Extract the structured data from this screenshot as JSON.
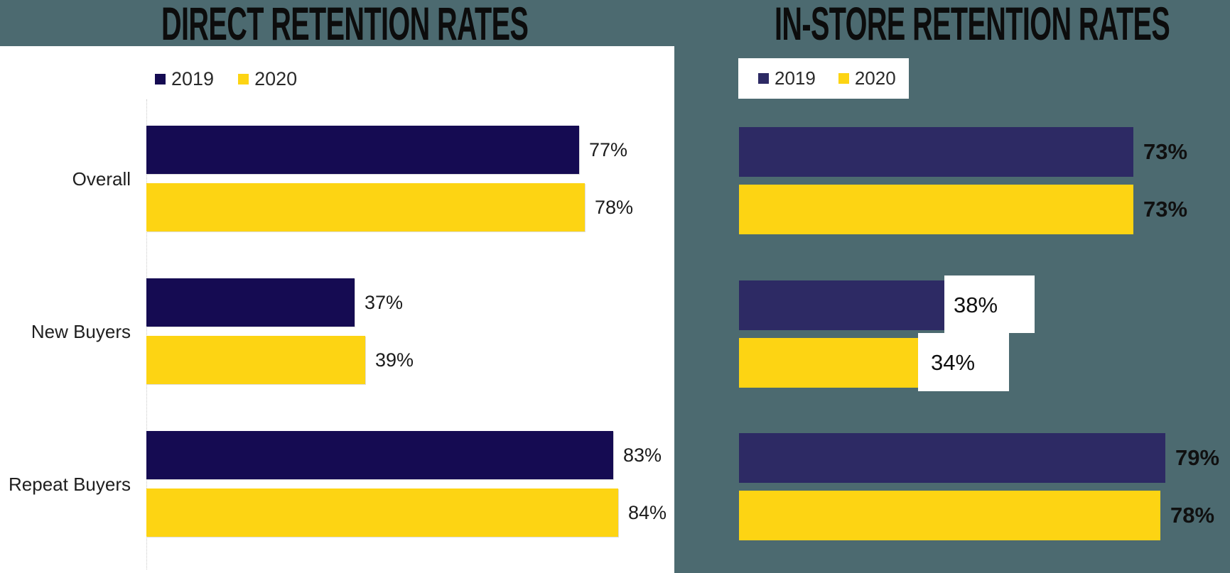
{
  "page": {
    "background_color": "#4C6A70"
  },
  "chart_data": [
    {
      "type": "bar",
      "orientation": "horizontal",
      "title": "DIRECT RETENTION RATES",
      "panel_background": "#FFFFFF",
      "categories": [
        "Overall",
        "New Buyers",
        "Repeat Buyers"
      ],
      "series": [
        {
          "name": "2019",
          "color": "#150B52",
          "values": [
            77,
            37,
            83
          ]
        },
        {
          "name": "2020",
          "color": "#FDD413",
          "values": [
            78,
            39,
            84
          ]
        }
      ],
      "value_suffix": "%",
      "data_labels": true,
      "legend_position": "top-left",
      "legend_entries": [
        "2019",
        "2020"
      ],
      "axis": {
        "baseline_visible": true,
        "tick_labels_visible": false
      },
      "xlim": [
        0,
        100
      ]
    },
    {
      "type": "bar",
      "orientation": "horizontal",
      "title": "IN-STORE RETENTION RATES",
      "panel_background": "#4C6A70",
      "categories": [
        "",
        "",
        ""
      ],
      "series": [
        {
          "name": "2019",
          "color": "#2D2A64",
          "values": [
            73,
            38,
            79
          ]
        },
        {
          "name": "2020",
          "color": "#FDD413",
          "values": [
            73,
            34,
            78
          ]
        }
      ],
      "value_suffix": "%",
      "data_labels": true,
      "legend_position": "top-left",
      "legend_background": "#FFFFFF",
      "legend_entries": [
        "2019",
        "2020"
      ],
      "rows_with_white_label_boxes": [
        1
      ],
      "xlim": [
        0,
        100
      ]
    }
  ]
}
